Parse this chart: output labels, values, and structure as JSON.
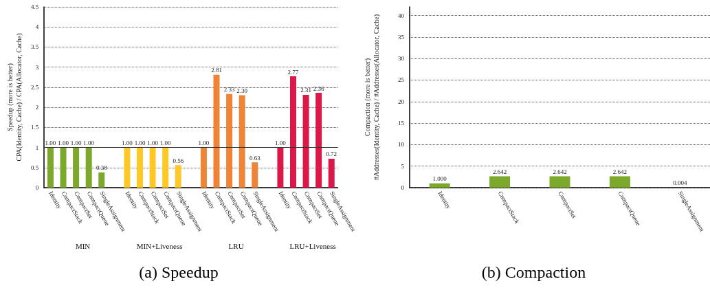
{
  "chart_data": [
    {
      "type": "bar",
      "title": "(a) Speedup",
      "ylabel": "Speedup (more is better)\nCPA(Identity, Cache) / CPA(Allocator, Cache)",
      "categories": [
        "Identity",
        "CompactStack",
        "CompactSet",
        "CompactQueue",
        "SingleAssignment",
        null,
        "Identity",
        "CompactStack",
        "CompactSet",
        "CompactQueue",
        "SingleAssignment",
        null,
        "Identity",
        "CompactStack",
        "CompactSet",
        "CompactQueue",
        "SingleAssignment",
        null,
        "Identity",
        "CompactStack",
        "CompactSet",
        "CompactQueue",
        "SingleAssignment"
      ],
      "values": [
        1.0,
        1.0,
        1.0,
        1.0,
        0.38,
        null,
        1.0,
        1.0,
        1.0,
        1.0,
        0.56,
        null,
        1.0,
        2.81,
        2.33,
        2.3,
        0.63,
        null,
        1.0,
        2.77,
        2.31,
        2.36,
        0.72
      ],
      "value_labels": [
        "1.00",
        "1.00",
        "1.00",
        "1.00",
        "0.38",
        null,
        "1.00",
        "1.00",
        "1.00",
        "1.00",
        "0.56",
        null,
        "1.00",
        "2.81",
        "2.33",
        "2.30",
        "0.63",
        null,
        "1.00",
        "2.77",
        "2.31",
        "2.36",
        "0.72"
      ],
      "colors": [
        "#7ca82b",
        "#7ca82b",
        "#7ca82b",
        "#7ca82b",
        "#7ca82b",
        null,
        "#fdc828",
        "#fdc828",
        "#fdc828",
        "#fdc828",
        "#fdc828",
        null,
        "#ee8536",
        "#ee8536",
        "#ee8536",
        "#ee8536",
        "#ee8536",
        null,
        "#dc1848",
        "#dc1848",
        "#dc1848",
        "#dc1848",
        "#dc1848"
      ],
      "annotations": [
        "MIN",
        "MIN+Liveness",
        "LRU",
        "LRU+Liveness"
      ],
      "ylim": [
        0,
        4.5
      ],
      "yticks": [
        0,
        0.5,
        1,
        1.5,
        2,
        2.5,
        3,
        3.5,
        4,
        4.5
      ],
      "grid": "y",
      "ref_lines": [
        {
          "axis": "y",
          "value": 1,
          "color": "#333333",
          "line_style": "solid"
        }
      ]
    },
    {
      "type": "bar",
      "title": "(b) Compaction",
      "ylabel": "Compaction (more is better)\n#Addresses(Identity, Cache) / #Addresses(Allocator, Cache)",
      "categories": [
        "Identity",
        "CompactStack",
        "CompactSet",
        "CompactQueue",
        "SingleAssignment"
      ],
      "values": [
        1.0,
        2.642,
        2.642,
        2.642,
        0.004
      ],
      "value_labels": [
        "1.000",
        "2.642",
        "2.642",
        "2.642",
        "0.004"
      ],
      "color": "#7ca82b",
      "ylim": [
        0,
        42
      ],
      "yticks": [
        0,
        5,
        10,
        15,
        20,
        25,
        30,
        35,
        40
      ],
      "grid": "y"
    }
  ]
}
